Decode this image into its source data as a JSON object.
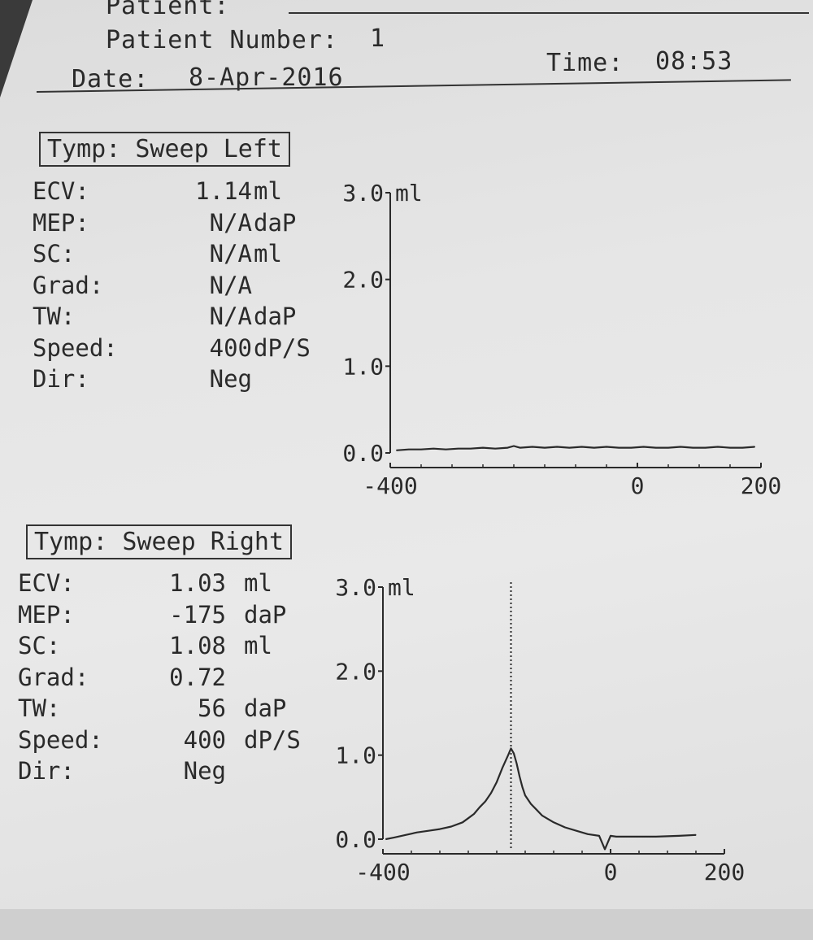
{
  "header": {
    "patient_label": "Patient:",
    "patient_number_label": "Patient Number:",
    "patient_number": "1",
    "date_label": "Date:",
    "date": "8-Apr-2016",
    "time_label": "Time:",
    "time": "08:53"
  },
  "left": {
    "title": "Tymp: Sweep Left",
    "rows": [
      {
        "label": "ECV:",
        "value": "1.14",
        "unit": "ml"
      },
      {
        "label": "MEP:",
        "value": "N/A",
        "unit": "daP"
      },
      {
        "label": "SC:",
        "value": "N/A",
        "unit": "ml"
      },
      {
        "label": "Grad:",
        "value": "N/A",
        "unit": ""
      },
      {
        "label": "TW:",
        "value": "N/A",
        "unit": "daP"
      },
      {
        "label": "Speed:",
        "value": "400",
        "unit": "dP/S"
      },
      {
        "label": "Dir:",
        "value": "Neg",
        "unit": ""
      }
    ]
  },
  "right": {
    "title": "Tymp: Sweep Right",
    "rows": [
      {
        "label": "ECV:",
        "value": "1.03",
        "unit": "ml"
      },
      {
        "label": "MEP:",
        "value": "-175",
        "unit": "daP"
      },
      {
        "label": "SC:",
        "value": "1.08",
        "unit": "ml"
      },
      {
        "label": "Grad:",
        "value": "0.72",
        "unit": ""
      },
      {
        "label": "TW:",
        "value": "56",
        "unit": "daP"
      },
      {
        "label": "Speed:",
        "value": "400",
        "unit": "dP/S"
      },
      {
        "label": "Dir:",
        "value": "Neg",
        "unit": ""
      }
    ]
  },
  "chart_data": [
    {
      "type": "line",
      "y_unit_label": "ml",
      "ylim": [
        0,
        3.0
      ],
      "xlim": [
        -400,
        200
      ],
      "y_ticks": [
        "3.0",
        "2.0",
        "1.0",
        "0.0"
      ],
      "y_tick_values": [
        3.0,
        2.0,
        1.0,
        0.0
      ],
      "x_ticks": [
        "-400",
        "0",
        "200"
      ],
      "x_tick_values": [
        -400,
        0,
        200
      ],
      "series": [
        {
          "x": [
            -390,
            -370,
            -350,
            -330,
            -310,
            -290,
            -270,
            -250,
            -230,
            -210,
            -200,
            -190,
            -170,
            -150,
            -130,
            -110,
            -90,
            -70,
            -50,
            -30,
            -10,
            10,
            30,
            50,
            70,
            90,
            110,
            130,
            150,
            170,
            190
          ],
          "y": [
            0.03,
            0.04,
            0.04,
            0.05,
            0.04,
            0.05,
            0.05,
            0.06,
            0.05,
            0.06,
            0.08,
            0.06,
            0.07,
            0.06,
            0.07,
            0.06,
            0.07,
            0.06,
            0.07,
            0.06,
            0.06,
            0.07,
            0.06,
            0.06,
            0.07,
            0.06,
            0.06,
            0.07,
            0.06,
            0.06,
            0.07
          ]
        }
      ]
    },
    {
      "type": "line",
      "y_unit_label": "ml",
      "ylim": [
        0,
        3.0
      ],
      "xlim": [
        -400,
        200
      ],
      "y_ticks": [
        "3.0",
        "2.0",
        "1.0",
        "0.0"
      ],
      "y_tick_values": [
        3.0,
        2.0,
        1.0,
        0.0
      ],
      "x_ticks": [
        "-400",
        "0",
        "200"
      ],
      "x_tick_values": [
        -400,
        0,
        200
      ],
      "peak_marker_x": -175,
      "series": [
        {
          "x": [
            -395,
            -380,
            -360,
            -340,
            -320,
            -300,
            -280,
            -260,
            -250,
            -240,
            -230,
            -220,
            -210,
            -200,
            -190,
            -180,
            -175,
            -170,
            -165,
            -160,
            -155,
            -150,
            -140,
            -130,
            -120,
            -100,
            -80,
            -60,
            -40,
            -20,
            -10,
            0,
            10,
            40,
            80,
            120,
            150
          ],
          "y": [
            0.0,
            0.02,
            0.05,
            0.08,
            0.1,
            0.12,
            0.15,
            0.2,
            0.25,
            0.3,
            0.38,
            0.45,
            0.55,
            0.68,
            0.85,
            1.0,
            1.08,
            1.02,
            0.9,
            0.75,
            0.62,
            0.52,
            0.42,
            0.35,
            0.28,
            0.2,
            0.14,
            0.1,
            0.06,
            0.04,
            -0.12,
            0.04,
            0.03,
            0.03,
            0.03,
            0.04,
            0.05
          ]
        }
      ]
    }
  ]
}
